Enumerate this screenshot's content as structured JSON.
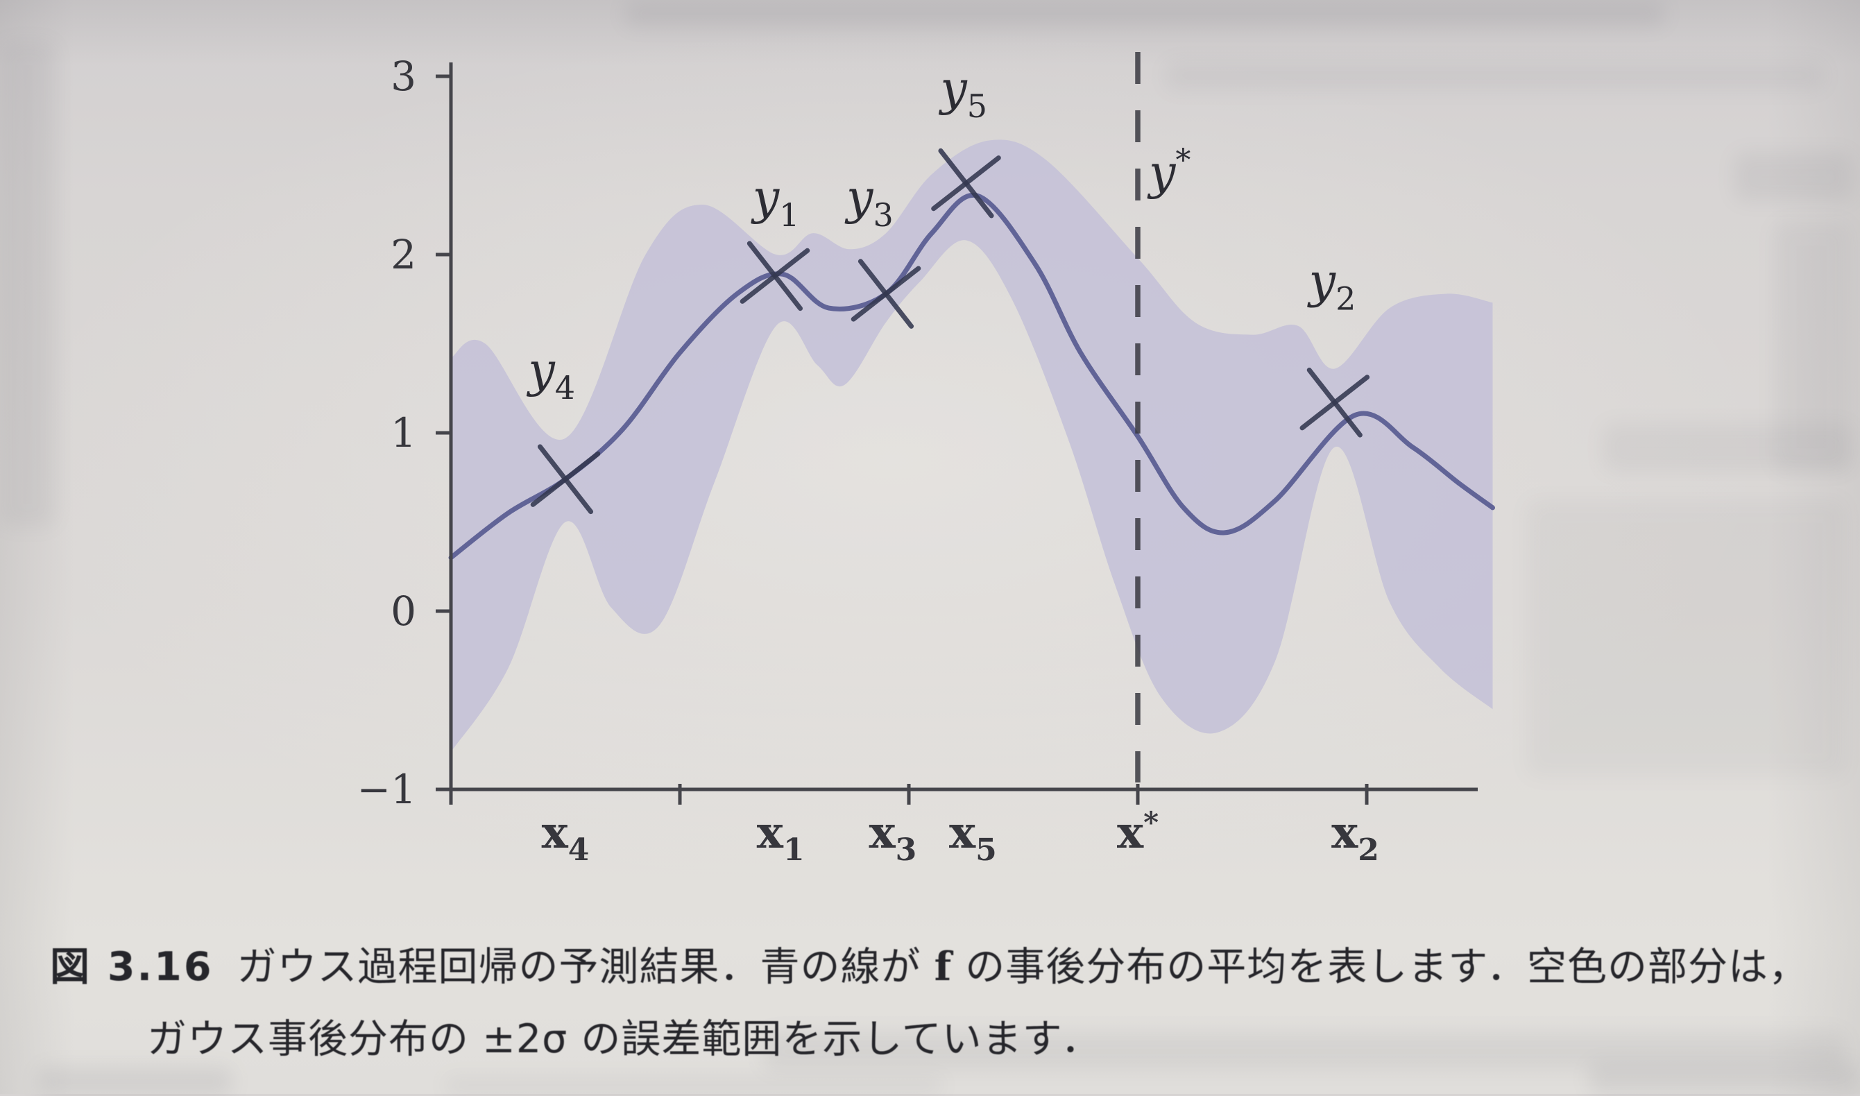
{
  "figure": {
    "label": "図 3.16",
    "caption_1a": "ガウス過程回帰の予測結果．青の線が ",
    "caption_f": "f",
    "caption_1b": " の事後分布の平均を表します．空色の部分は，",
    "caption_2": "ガウス事後分布の ±2σ の誤差範囲を示しています．"
  },
  "colors": {
    "band": "#c6c2d8",
    "mean_line": "#5c5f94",
    "axis": "#45454b",
    "tick_text": "#37373d",
    "marker": "#343850",
    "dashed_line": "#3a3a42",
    "point_label_text": "#2c2c33"
  },
  "chart_data": {
    "type": "line",
    "title": "",
    "xlabel": "",
    "ylabel": "",
    "description": "Gaussian process regression: posterior mean of f (blue line) with ±2σ confidence band (light blue region), training points y1..y5 at x1..x5, prediction y* at x*",
    "x_range": [
      0,
      4.55
    ],
    "y_range": [
      -1,
      3
    ],
    "grid": false,
    "legend": false,
    "y_ticks": [
      {
        "value": 3,
        "label": "3"
      },
      {
        "value": 2,
        "label": "2"
      },
      {
        "value": 1,
        "label": "1"
      },
      {
        "value": 0,
        "label": "0"
      },
      {
        "value": -1,
        "label": "−1"
      }
    ],
    "x_ticks": [
      0,
      1,
      2,
      3,
      4
    ],
    "points": [
      {
        "id": "p4",
        "x": 0.5,
        "y": 0.74,
        "label_base": "y",
        "label_sub": "4",
        "label_at": [
          0.44,
          1.26
        ],
        "xlabel_base": "x",
        "xlabel_sub": "4",
        "xlabel_at": 0.5
      },
      {
        "id": "p1",
        "x": 1.415,
        "y": 1.88,
        "label_base": "y",
        "label_sub": "1",
        "label_at": [
          1.42,
          2.23
        ],
        "xlabel_base": "x",
        "xlabel_sub": "1",
        "xlabel_at": 1.44
      },
      {
        "id": "p3",
        "x": 1.9,
        "y": 1.78,
        "label_base": "y",
        "label_sub": "3",
        "label_at": [
          1.83,
          2.23
        ],
        "xlabel_base": "x",
        "xlabel_sub": "3",
        "xlabel_at": 1.93
      },
      {
        "id": "p5",
        "x": 2.25,
        "y": 2.4,
        "label_base": "y",
        "label_sub": "5",
        "label_at": [
          2.24,
          2.84
        ],
        "xlabel_base": "x",
        "xlabel_sub": "5",
        "xlabel_at": 2.28
      },
      {
        "id": "p2",
        "x": 3.86,
        "y": 1.17,
        "label_base": "y",
        "label_sub": "2",
        "label_at": [
          3.85,
          1.76
        ],
        "xlabel_base": "x",
        "xlabel_sub": "2",
        "xlabel_at": 3.95
      }
    ],
    "star": {
      "x": 3.0,
      "y_label_base": "y",
      "y_label_sup": "*",
      "y_label_at": [
        3.14,
        2.37
      ],
      "x_label_base": "x",
      "x_label_sup": "*",
      "x_label_at": 3.0
    },
    "mean_curve": [
      [
        0.0,
        0.3
      ],
      [
        0.25,
        0.55
      ],
      [
        0.5,
        0.74
      ],
      [
        0.75,
        1.02
      ],
      [
        1.0,
        1.45
      ],
      [
        1.25,
        1.78
      ],
      [
        1.45,
        1.89
      ],
      [
        1.65,
        1.7
      ],
      [
        1.9,
        1.78
      ],
      [
        2.1,
        2.12
      ],
      [
        2.3,
        2.33
      ],
      [
        2.55,
        1.95
      ],
      [
        2.75,
        1.45
      ],
      [
        3.0,
        0.98
      ],
      [
        3.2,
        0.58
      ],
      [
        3.38,
        0.44
      ],
      [
        3.6,
        0.62
      ],
      [
        3.95,
        1.1
      ],
      [
        4.2,
        0.92
      ],
      [
        4.4,
        0.72
      ],
      [
        4.55,
        0.58
      ]
    ],
    "band_upper": [
      [
        0.0,
        1.42
      ],
      [
        0.15,
        1.5
      ],
      [
        0.5,
        0.97
      ],
      [
        0.85,
        2.0
      ],
      [
        1.1,
        2.28
      ],
      [
        1.42,
        2.0
      ],
      [
        1.58,
        2.12
      ],
      [
        1.74,
        2.03
      ],
      [
        1.9,
        2.12
      ],
      [
        2.1,
        2.45
      ],
      [
        2.35,
        2.64
      ],
      [
        2.6,
        2.53
      ],
      [
        3.0,
        1.98
      ],
      [
        3.25,
        1.62
      ],
      [
        3.5,
        1.55
      ],
      [
        3.7,
        1.6
      ],
      [
        3.86,
        1.36
      ],
      [
        4.1,
        1.7
      ],
      [
        4.35,
        1.78
      ],
      [
        4.55,
        1.73
      ]
    ],
    "band_lower": [
      [
        0.0,
        -0.79
      ],
      [
        0.25,
        -0.32
      ],
      [
        0.5,
        0.5
      ],
      [
        0.7,
        0.02
      ],
      [
        0.91,
        -0.08
      ],
      [
        1.15,
        0.72
      ],
      [
        1.42,
        1.6
      ],
      [
        1.6,
        1.38
      ],
      [
        1.72,
        1.27
      ],
      [
        1.9,
        1.62
      ],
      [
        2.05,
        1.85
      ],
      [
        2.25,
        2.08
      ],
      [
        2.45,
        1.75
      ],
      [
        2.7,
        0.95
      ],
      [
        2.9,
        0.15
      ],
      [
        3.1,
        -0.48
      ],
      [
        3.35,
        -0.68
      ],
      [
        3.6,
        -0.28
      ],
      [
        3.86,
        0.92
      ],
      [
        4.1,
        0.05
      ],
      [
        4.32,
        -0.32
      ],
      [
        4.55,
        -0.55
      ]
    ]
  }
}
